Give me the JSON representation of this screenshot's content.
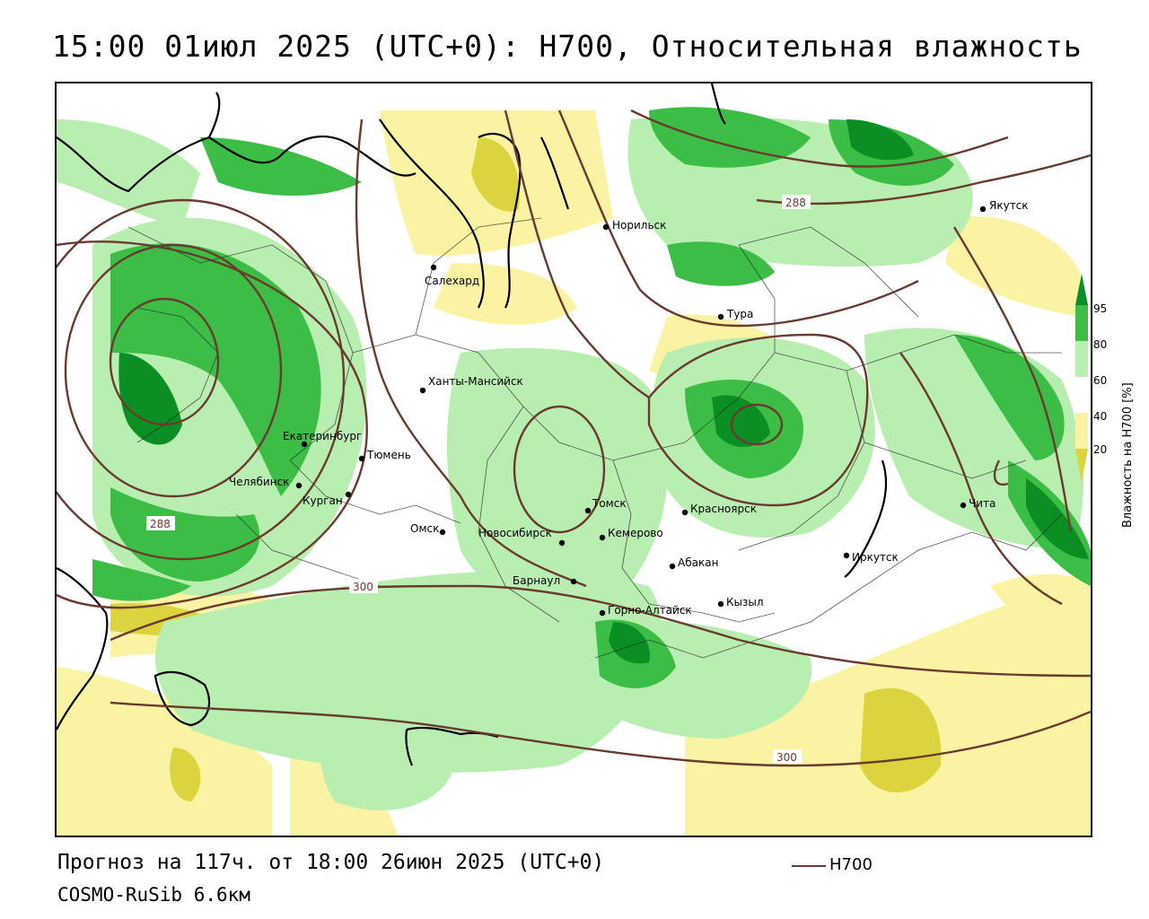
{
  "header": {
    "title": "15:00 01июл 2025 (UTC+0): H700, Относительная влажность"
  },
  "footer": {
    "forecast": "Прогноз на 117ч. от 18:00 26июн 2025 (UTC+0)",
    "model": "COSMO-RuSib 6.6км",
    "contour_legend": "H700"
  },
  "colorbar": {
    "title": "Влажность на Н700 [%]",
    "ticks": [
      "95",
      "80",
      "60",
      "40",
      "20"
    ],
    "colors": {
      "above_95": "#0a8f24",
      "80_95": "#3cbe46",
      "60_80": "#b8eeb0",
      "40_60": "#ffffff",
      "20_40": "#fbf3a4",
      "below_20": "#dcd43e"
    }
  },
  "isolines": {
    "color": "#6b3a2e",
    "labels": [
      "288",
      "288",
      "300",
      "300"
    ]
  },
  "cities": [
    {
      "name": "Норильск"
    },
    {
      "name": "Якутск"
    },
    {
      "name": "Салехард"
    },
    {
      "name": "Тура"
    },
    {
      "name": "Ханты-Мансийск"
    },
    {
      "name": "Екатеринбург"
    },
    {
      "name": "Тюмень"
    },
    {
      "name": "Челябинск"
    },
    {
      "name": "Курган"
    },
    {
      "name": "Омск"
    },
    {
      "name": "Новосибирск"
    },
    {
      "name": "Томск"
    },
    {
      "name": "Кемерово"
    },
    {
      "name": "Красноярск"
    },
    {
      "name": "Барнаул"
    },
    {
      "name": "Абакан"
    },
    {
      "name": "Иркутск"
    },
    {
      "name": "Чита"
    },
    {
      "name": "Кызыл"
    },
    {
      "name": "Горно-Алтайск"
    }
  ]
}
